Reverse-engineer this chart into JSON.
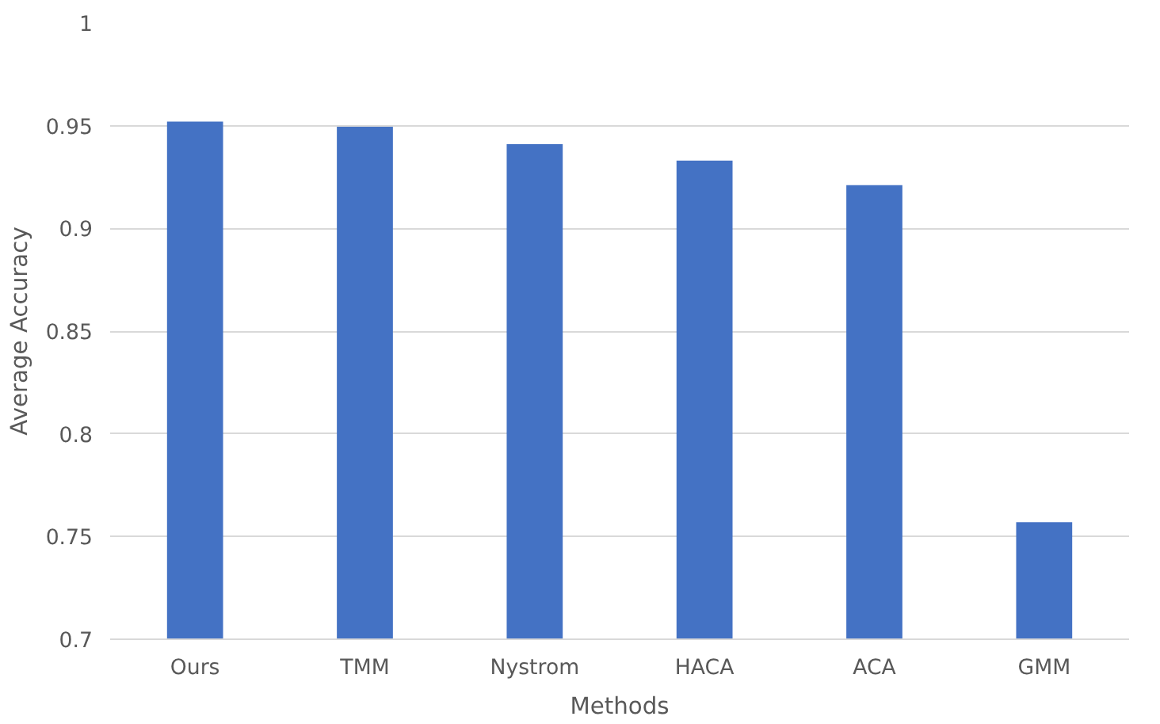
{
  "chart_data": {
    "type": "bar",
    "xlabel": "Methods",
    "ylabel": "Average Accuracy",
    "categories": [
      "Ours",
      "TMM",
      "Nystrom",
      "HACA",
      "ACA",
      "GMM"
    ],
    "values": [
      0.952,
      0.9495,
      0.941,
      0.933,
      0.921,
      0.757
    ],
    "color": "#4472c4",
    "ylim": [
      0.7,
      1
    ],
    "yticks": [
      0.7,
      0.75,
      0.8,
      0.85,
      0.9,
      0.95,
      1
    ],
    "grid": "y"
  }
}
